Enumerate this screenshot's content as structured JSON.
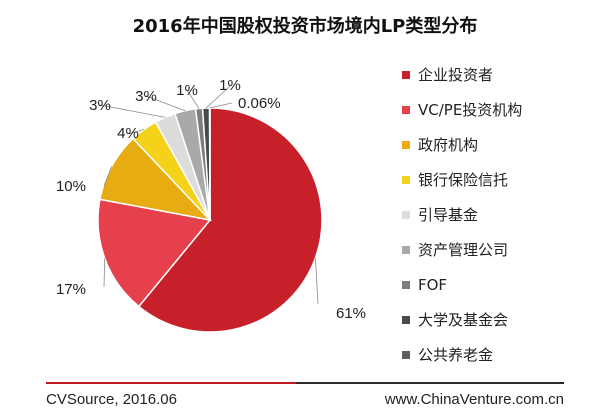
{
  "chart_data": {
    "type": "pie",
    "title": "2016年中国股权投资市场境内LP类型分布",
    "slices": [
      {
        "name": "企业投资者",
        "value": 61,
        "label": "61%",
        "color": "#c8202b"
      },
      {
        "name": "VC/PE投资机构",
        "value": 17,
        "label": "17%",
        "color": "#e5404c"
      },
      {
        "name": "政府机构",
        "value": 10,
        "label": "10%",
        "color": "#e6ac12"
      },
      {
        "name": "银行保险信托",
        "value": 4,
        "label": "4%",
        "color": "#f5d21a"
      },
      {
        "name": "引导基金",
        "value": 3,
        "label": "3%",
        "color": "#dcdcdc"
      },
      {
        "name": "资产管理公司",
        "value": 3,
        "label": "3%",
        "color": "#a9a9a9"
      },
      {
        "name": "FOF",
        "value": 1,
        "label": "1%",
        "color": "#7d7d7d"
      },
      {
        "name": "大学及基金会",
        "value": 1,
        "label": "1%",
        "color": "#4a4a4a"
      },
      {
        "name": "公共养老金",
        "value": 0.06,
        "label": "0.06%",
        "color": "#5e5e5e"
      }
    ]
  },
  "footer": {
    "source": "CVSource, 2016.06",
    "website": "www.ChinaVenture.com.cn"
  }
}
